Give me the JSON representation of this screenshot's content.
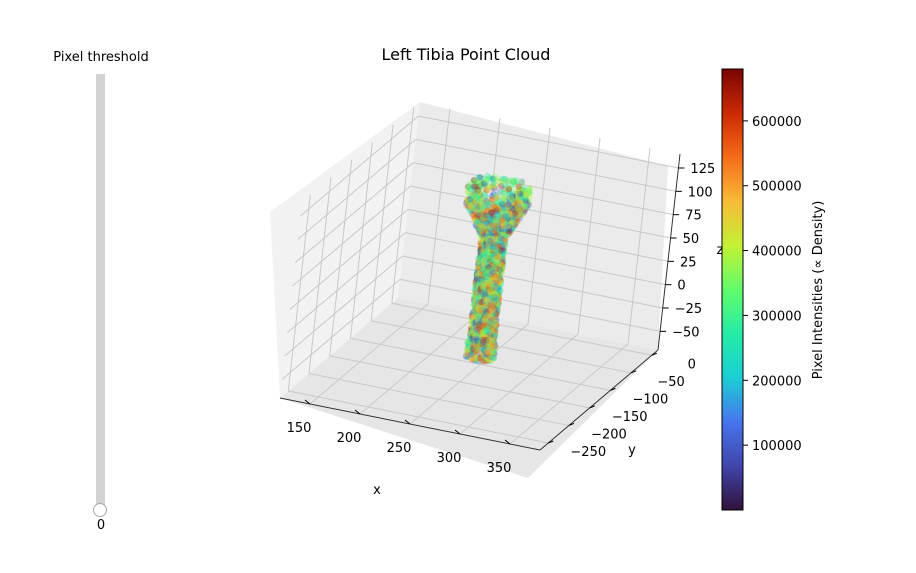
{
  "slider": {
    "label": "Pixel threshold",
    "value": "0",
    "level": 0
  },
  "chart_data": {
    "type": "scatter3d",
    "title": "Left Tibia Point Cloud",
    "xlabel": "x",
    "ylabel": "y",
    "zlabel": "z",
    "xlim": [
      120,
      380
    ],
    "ylim": [
      -270,
      15
    ],
    "zlim": [
      -70,
      140
    ],
    "xticks": [
      150,
      200,
      250,
      300,
      350
    ],
    "yticks": [
      0,
      -50,
      -100,
      -150,
      -200,
      -250
    ],
    "zticks": [
      125,
      100,
      75,
      50,
      25,
      0,
      -25,
      -50
    ],
    "colorbar": {
      "label": "Pixel Intensities (∝ Density)",
      "min": 0,
      "max": 680000,
      "ticks": [
        100000,
        200000,
        300000,
        400000,
        500000,
        600000
      ],
      "colormap": "turbo"
    },
    "grid": true,
    "shape": {
      "description_points": "tibia shaped cloud; shaft center x≈247, y≈-95",
      "zmin": -65,
      "zmax": 118,
      "shaft_radius": 12,
      "plateau_radius": 30,
      "plateau_z_start": 65
    }
  }
}
